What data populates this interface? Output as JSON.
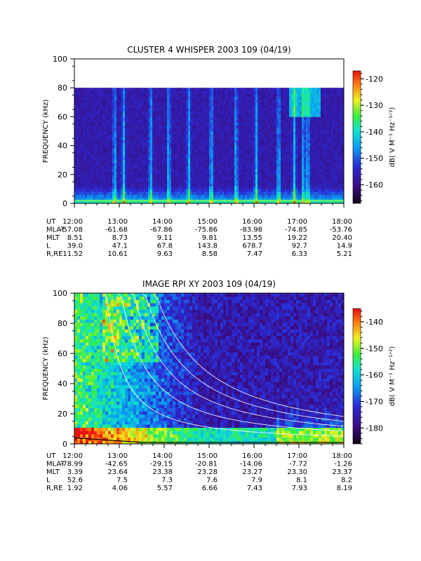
{
  "chart_data": [
    {
      "type": "heatmap",
      "title": "CLUSTER 4 WHISPER 2003 109 (04/19)",
      "ylabel": "FREQUENCY (kHz)",
      "ylim": [
        0,
        100
      ],
      "yticks": [
        "0",
        "20",
        "40",
        "60",
        "80",
        "100"
      ],
      "ytick_values": [
        0,
        20,
        40,
        60,
        80,
        100
      ],
      "data_top_khz": 80,
      "xticks": [
        "12:00",
        "13:00",
        "14:00",
        "15:00",
        "16:00",
        "17:00",
        "18:00"
      ],
      "xlim_hours": [
        12,
        18
      ],
      "colorbar": {
        "label": "dB( V M⁻¹ Hz⁻¹ᐟ²)",
        "ticks": [
          "-120",
          "-130",
          "-140",
          "-150",
          "-160"
        ],
        "tick_values": [
          -120,
          -130,
          -140,
          -150,
          -160
        ],
        "range": [
          -167,
          -117
        ]
      },
      "ephemeris": [
        {
          "label": "UT",
          "values": [
            "12:00",
            "13:00",
            "14:00",
            "15:00",
            "16:00",
            "17:00",
            "18:00"
          ]
        },
        {
          "label": "MLAT",
          "values": [
            "-57.08",
            "-61.68",
            "-67.86",
            "-75.86",
            "-83.98",
            "-74.85",
            "-53.76"
          ]
        },
        {
          "label": "MLT",
          "values": [
            "8.51",
            "8.73",
            "9.11",
            "9.81",
            "13.55",
            "19.22",
            "20.40"
          ]
        },
        {
          "label": "L",
          "values": [
            "39.0",
            "47.1",
            "67.8",
            "143.8",
            "678.7",
            "92.7",
            "14.9"
          ]
        },
        {
          "label": "R,RE",
          "values": [
            "11.52",
            "10.61",
            "9.63",
            "8.58",
            "7.47",
            "6.33",
            "5.21"
          ]
        }
      ]
    },
    {
      "type": "heatmap",
      "title": "IMAGE RPI XY 2003 109 (04/19)",
      "ylabel": "FREQUENCY (kHz)",
      "ylim": [
        0,
        100
      ],
      "yticks": [
        "0",
        "20",
        "40",
        "60",
        "80",
        "100"
      ],
      "ytick_values": [
        0,
        20,
        40,
        60,
        80,
        100
      ],
      "data_top_khz": 100,
      "xticks": [
        "12:00",
        "13:00",
        "14:00",
        "15:00",
        "16:00",
        "17:00",
        "18:00"
      ],
      "xlim_hours": [
        12,
        18
      ],
      "colorbar": {
        "label": "dB( V M⁻¹ Hz⁻¹ᐟ²)",
        "ticks": [
          "-140",
          "-150",
          "-160",
          "-170",
          "-180"
        ],
        "tick_values": [
          -140,
          -150,
          -160,
          -170,
          -180
        ],
        "range": [
          -186,
          -135
        ]
      },
      "ephemeris": [
        {
          "label": "UT",
          "values": [
            "12:00",
            "13:00",
            "14:00",
            "15:00",
            "16:00",
            "17:00",
            "18:00"
          ]
        },
        {
          "label": "MLAT",
          "values": [
            "-78.99",
            "-42.65",
            "-29.15",
            "-20.81",
            "-14.06",
            "-7.72",
            "-1.26"
          ]
        },
        {
          "label": "MLT",
          "values": [
            "3.39",
            "23.64",
            "23.38",
            "23.28",
            "23.27",
            "23.30",
            "23.37"
          ]
        },
        {
          "label": "L",
          "values": [
            "52.6",
            "7.5",
            "7.3",
            "7.6",
            "7.9",
            "8.1",
            "8.2"
          ]
        },
        {
          "label": "R,RE",
          "values": [
            "1.92",
            "4.06",
            "5.57",
            "6.66",
            "7.43",
            "7.93",
            "8.19"
          ]
        }
      ]
    }
  ]
}
